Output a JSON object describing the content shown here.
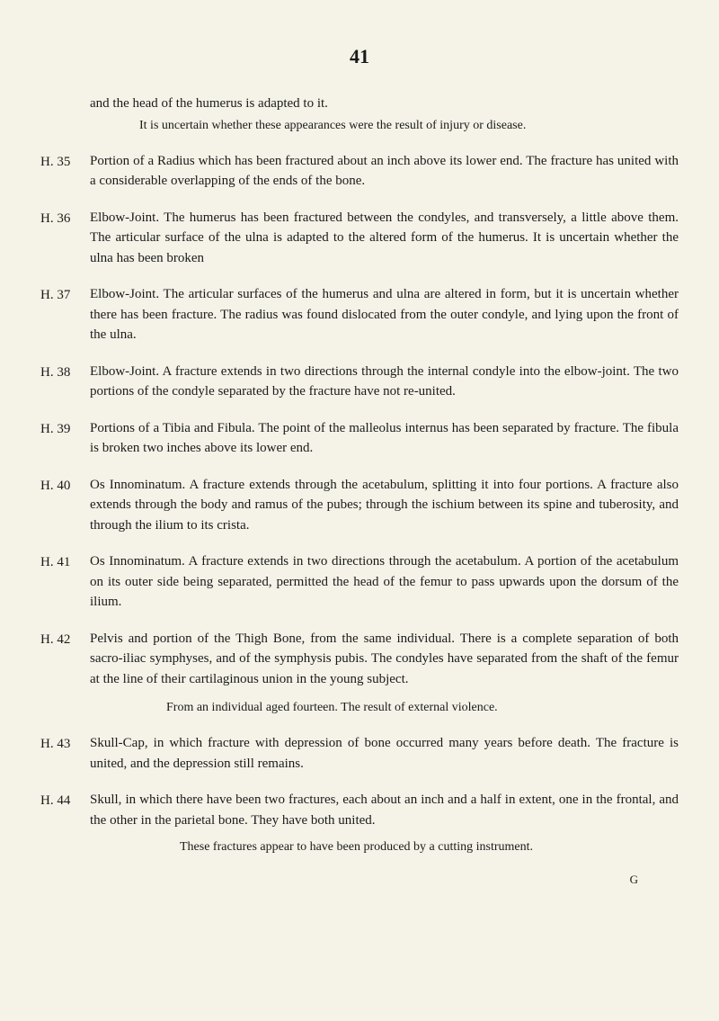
{
  "page_number": "41",
  "intro": {
    "text": "and the head of the humerus is adapted to it.",
    "note": "It is uncertain whether these appearances were the result of injury or disease."
  },
  "entries": [
    {
      "id": "H. 35",
      "text": "Portion of a Radius which has been fractured about an inch above its lower end. The fracture has united with a considerable overlapping of the ends of the bone."
    },
    {
      "id": "H. 36",
      "text": "Elbow-Joint. The humerus has been fractured between the condyles, and transversely, a little above them. The articular surface of the ulna is adapted to the altered form of the humerus. It is uncertain whether the ulna has been broken"
    },
    {
      "id": "H. 37",
      "text": "Elbow-Joint. The articular surfaces of the humerus and ulna are altered in form, but it is uncertain whether there has been fracture. The radius was found dislocated from the outer condyle, and lying upon the front of the ulna."
    },
    {
      "id": "H. 38",
      "text": "Elbow-Joint. A fracture extends in two directions through the internal condyle into the elbow-joint. The two portions of the condyle separated by the fracture have not re-united."
    },
    {
      "id": "H. 39",
      "text": "Portions of a Tibia and Fibula. The point of the malleolus internus has been separated by fracture. The fibula is broken two inches above its lower end."
    },
    {
      "id": "H. 40",
      "text": "Os Innominatum. A fracture extends through the acetabulum, splitting it into four portions. A fracture also extends through the body and ramus of the pubes; through the ischium between its spine and tuberosity, and through the ilium to its crista."
    },
    {
      "id": "H. 41",
      "text": "Os Innominatum. A fracture extends in two directions through the acetabulum. A portion of the acetabulum on its outer side being separated, permitted the head of the femur to pass upwards upon the dorsum of the ilium."
    },
    {
      "id": "H. 42",
      "text": "Pelvis and portion of the Thigh Bone, from the same individual. There is a complete separation of both sacro-iliac symphyses, and of the symphysis pubis. The condyles have separated from the shaft of the femur at the line of their cartilaginous union in the young subject.",
      "note": "From an individual aged fourteen. The result of external violence."
    },
    {
      "id": "H. 43",
      "text": "Skull-Cap, in which fracture with depression of bone occurred many years before death. The fracture is united, and the depression still remains."
    },
    {
      "id": "H. 44",
      "text": "Skull, in which there have been two fractures, each about an inch and a half in extent, one in the frontal, and the other in the parietal bone. They have both united.",
      "note": "These fractures appear to have been produced by a cutting instrument."
    }
  ],
  "footer_letter": "G"
}
